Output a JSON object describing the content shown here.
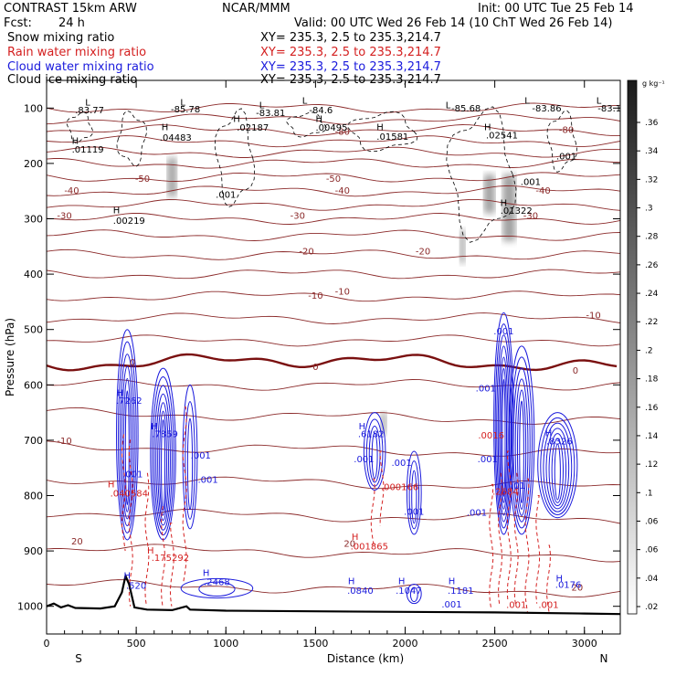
{
  "header": {
    "model": "CONTRAST 15km ARW",
    "org": "NCAR/MMM",
    "init": "Init: 00 UTC Tue 25 Feb 14",
    "fcst_label": "Fcst:",
    "fcst_value": "24 h",
    "valid": "Valid: 00 UTC Wed 26 Feb 14 (10 ChT Wed 26 Feb 14)"
  },
  "fields": [
    {
      "name": "Snow mixing ratio",
      "xy": "",
      "color": "#000000"
    },
    {
      "name": "Rain water mixing ratio",
      "xy": "XY= 235.3,  2.5 to 235.3,214.7",
      "color": "#d42020"
    },
    {
      "name": "Cloud water mixing ratio",
      "xy": "XY= 235.3,  2.5 to 235.3,214.7",
      "color": "#1a1adc"
    },
    {
      "name": "Cloud ice mixing ratio",
      "xy": "XY= 235.3,  2.5 to 235.3,214.7",
      "color": "#000000"
    }
  ],
  "snow_xy": "XY= 235.3,  2.5 to 235.3,214.7",
  "chart_data": {
    "type": "contour",
    "xlabel": "Distance (km)",
    "ylabel": "Pressure (hPa)",
    "xlim": [
      0,
      3200
    ],
    "ylim": [
      1050,
      50
    ],
    "x_ticks": [
      0,
      500,
      1000,
      1500,
      2000,
      2500,
      3000
    ],
    "y_ticks": [
      100,
      200,
      300,
      400,
      500,
      600,
      700,
      800,
      900,
      1000
    ],
    "endpoints": {
      "left": "S",
      "right": "N"
    },
    "colorbar": {
      "unit": "g kg⁻¹",
      "ticks": [
        ".02",
        ".04",
        ".06",
        ".06",
        ".1",
        ".12",
        ".14",
        ".16",
        ".18",
        ".2",
        ".22",
        ".24",
        ".26",
        ".28",
        ".3",
        ".32",
        ".34",
        ".36"
      ]
    },
    "temperature_labels": [
      {
        "text": "-80",
        "x": 1650,
        "p": 148
      },
      {
        "text": "-80",
        "x": 2900,
        "p": 145
      },
      {
        "text": "-50",
        "x": 535,
        "p": 233
      },
      {
        "text": "-50",
        "x": 1600,
        "p": 233
      },
      {
        "text": "-40",
        "x": 140,
        "p": 255
      },
      {
        "text": "-40",
        "x": 1650,
        "p": 255
      },
      {
        "text": "-40",
        "x": 2770,
        "p": 255
      },
      {
        "text": "-30",
        "x": 100,
        "p": 300
      },
      {
        "text": "-30",
        "x": 1400,
        "p": 300
      },
      {
        "text": "-30",
        "x": 2700,
        "p": 300
      },
      {
        "text": "-20",
        "x": 1450,
        "p": 364
      },
      {
        "text": "-20",
        "x": 2100,
        "p": 364
      },
      {
        "text": "-10",
        "x": 1500,
        "p": 444
      },
      {
        "text": "-10",
        "x": 1650,
        "p": 437
      },
      {
        "text": "-10",
        "x": 3050,
        "p": 480
      },
      {
        "text": "0",
        "x": 480,
        "p": 565
      },
      {
        "text": "0",
        "x": 1500,
        "p": 573
      },
      {
        "text": "0",
        "x": 2950,
        "p": 580
      },
      {
        "text": "-10",
        "x": 100,
        "p": 707
      },
      {
        "text": "20",
        "x": 170,
        "p": 888
      },
      {
        "text": "20",
        "x": 1690,
        "p": 892
      },
      {
        "text": "20",
        "x": 2960,
        "p": 972
      }
    ],
    "snow_labels": [
      {
        "text": "L",
        "x": 230,
        "p": 95
      },
      {
        "text": ".83.77",
        "x": 240,
        "p": 109
      },
      {
        "text": "L",
        "x": 760,
        "p": 95
      },
      {
        "text": "-85.78",
        "x": 775,
        "p": 108
      },
      {
        "text": "L",
        "x": 1200,
        "p": 100
      },
      {
        "text": "-83.81",
        "x": 1250,
        "p": 114
      },
      {
        "text": "L",
        "x": 1440,
        "p": 92
      },
      {
        "text": "-84.6",
        "x": 1530,
        "p": 109
      },
      {
        "text": "L",
        "x": 2240,
        "p": 100
      },
      {
        "text": "-85.68",
        "x": 2340,
        "p": 106
      },
      {
        "text": "L",
        "x": 2680,
        "p": 92
      },
      {
        "text": "-83.86",
        "x": 2790,
        "p": 106
      },
      {
        "text": "L",
        "x": 3080,
        "p": 92
      },
      {
        "text": "-83.1",
        "x": 3140,
        "p": 106
      },
      {
        "text": "H",
        "x": 160,
        "p": 165
      },
      {
        "text": ".01119",
        "x": 230,
        "p": 180
      },
      {
        "text": "H",
        "x": 660,
        "p": 140
      },
      {
        "text": ".04483",
        "x": 720,
        "p": 159
      },
      {
        "text": "H",
        "x": 1060,
        "p": 125
      },
      {
        "text": ".02187",
        "x": 1150,
        "p": 141
      },
      {
        "text": "H",
        "x": 1520,
        "p": 125
      },
      {
        "text": ".00495",
        "x": 1590,
        "p": 141
      },
      {
        "text": "H",
        "x": 1860,
        "p": 140
      },
      {
        "text": ".01581",
        "x": 1930,
        "p": 157
      },
      {
        "text": "H",
        "x": 2460,
        "p": 140
      },
      {
        "text": ".02541",
        "x": 2540,
        "p": 155
      },
      {
        "text": ".001",
        "x": 2900,
        "p": 193
      },
      {
        "text": ".001",
        "x": 2700,
        "p": 239
      },
      {
        "text": ".001",
        "x": 1000,
        "p": 262
      },
      {
        "text": "H",
        "x": 390,
        "p": 290
      },
      {
        "text": ".00219",
        "x": 460,
        "p": 309
      },
      {
        "text": "H",
        "x": 2550,
        "p": 277
      },
      {
        "text": ".01322",
        "x": 2620,
        "p": 291
      }
    ],
    "rain_labels": [
      {
        "text": "H",
        "x": 360,
        "p": 785
      },
      {
        "text": ".040584",
        "x": 460,
        "p": 802
      },
      {
        "text": "H",
        "x": 580,
        "p": 905
      },
      {
        "text": ".175292",
        "x": 690,
        "p": 918
      },
      {
        "text": "H",
        "x": 1720,
        "p": 880
      },
      {
        "text": ".001865",
        "x": 1800,
        "p": 897
      },
      {
        "text": ".000166",
        "x": 1970,
        "p": 790
      },
      {
        "text": ".2684",
        "x": 2560,
        "p": 798
      },
      {
        "text": ".0016",
        "x": 2480,
        "p": 697
      },
      {
        "text": ".001",
        "x": 2620,
        "p": 1003
      },
      {
        "text": ".001",
        "x": 2800,
        "p": 1003
      }
    ],
    "cloud_labels": [
      {
        "text": "H",
        "x": 410,
        "p": 620
      },
      {
        "text": ".7262",
        "x": 460,
        "p": 634
      },
      {
        "text": "H",
        "x": 600,
        "p": 680
      },
      {
        "text": ".7859",
        "x": 660,
        "p": 694
      },
      {
        "text": ".001",
        "x": 860,
        "p": 733
      },
      {
        "text": ".001",
        "x": 900,
        "p": 777
      },
      {
        "text": ".001",
        "x": 480,
        "p": 767
      },
      {
        "text": "H",
        "x": 1760,
        "p": 680
      },
      {
        "text": ".6182",
        "x": 1810,
        "p": 694
      },
      {
        "text": ".001",
        "x": 1770,
        "p": 740
      },
      {
        "text": ".001",
        "x": 1980,
        "p": 746
      },
      {
        "text": ".001",
        "x": 2050,
        "p": 835
      },
      {
        "text": ".001",
        "x": 2400,
        "p": 836
      },
      {
        "text": ".001",
        "x": 2550,
        "p": 509
      },
      {
        "text": ".001",
        "x": 2450,
        "p": 612
      },
      {
        "text": ".001",
        "x": 2460,
        "p": 740
      },
      {
        "text": ".01",
        "x": 2630,
        "p": 788
      },
      {
        "text": "H",
        "x": 2800,
        "p": 693
      },
      {
        "text": ".8326",
        "x": 2860,
        "p": 708
      },
      {
        "text": "H",
        "x": 450,
        "p": 950
      },
      {
        "text": ".520",
        "x": 500,
        "p": 968
      },
      {
        "text": "H",
        "x": 890,
        "p": 945
      },
      {
        "text": ".2468",
        "x": 950,
        "p": 962
      },
      {
        "text": "H",
        "x": 1700,
        "p": 960
      },
      {
        "text": ".0840",
        "x": 1750,
        "p": 977
      },
      {
        "text": "H",
        "x": 1980,
        "p": 960
      },
      {
        "text": ".1047",
        "x": 2020,
        "p": 977
      },
      {
        "text": "H",
        "x": 2260,
        "p": 960
      },
      {
        "text": ".1181",
        "x": 2310,
        "p": 977
      },
      {
        "text": "H",
        "x": 2860,
        "p": 955
      },
      {
        "text": ".0176",
        "x": 2910,
        "p": 967
      },
      {
        "text": ".001",
        "x": 2260,
        "p": 1002
      }
    ]
  }
}
